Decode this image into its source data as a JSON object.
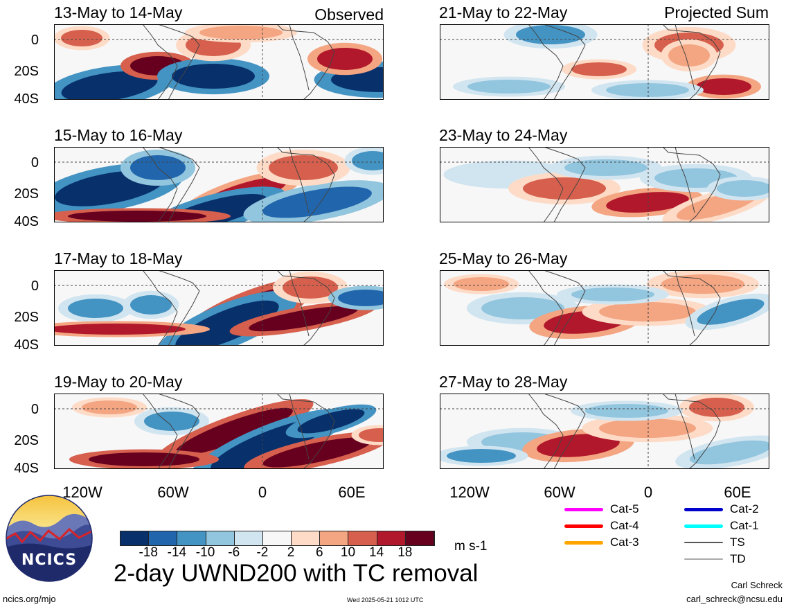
{
  "left_column": {
    "tag": "Observed",
    "panels": [
      {
        "title": "13-May to 14-May"
      },
      {
        "title": "15-May to 16-May"
      },
      {
        "title": "17-May to 18-May"
      },
      {
        "title": "19-May to 20-May"
      }
    ]
  },
  "right_column": {
    "tag": "Projected Sum",
    "panels": [
      {
        "title": "21-May to 22-May"
      },
      {
        "title": "23-May to 24-May"
      },
      {
        "title": "25-May to 26-May"
      },
      {
        "title": "27-May to 28-May"
      }
    ]
  },
  "lat_labels": [
    "0",
    "20S",
    "40S"
  ],
  "lon_labels": [
    "120W",
    "60W",
    "0",
    "60E"
  ],
  "colorbar": {
    "colors": [
      "#08306b",
      "#2166ac",
      "#4393c3",
      "#92c5de",
      "#d1e5f0",
      "#f7f7f7",
      "#fddbc7",
      "#f4a582",
      "#d6604d",
      "#b2182b",
      "#67001f"
    ],
    "labels": [
      "-18",
      "-14",
      "-10",
      "-6",
      "-2",
      "2",
      "6",
      "10",
      "14",
      "18"
    ],
    "units": "m s-1"
  },
  "legend": [
    {
      "label": "Cat-5",
      "color": "#ff00ff"
    },
    {
      "label": "Cat-4",
      "color": "#ff0000"
    },
    {
      "label": "Cat-3",
      "color": "#ffa500"
    },
    {
      "label": "Cat-2",
      "color": "#0000cc"
    },
    {
      "label": "Cat-1",
      "color": "#00ffff"
    },
    {
      "label": "TS",
      "color": "#555555"
    },
    {
      "label": "TD",
      "color": "#aaaaaa"
    }
  ],
  "main_title": "2-day UWND200 with TC removal",
  "logo_text": "NCICS",
  "footer": {
    "site": "ncics.org/mjo",
    "timestamp": "Wed 2025-05-21 1012 UTC",
    "author": "Carl Schreck",
    "email": "carl_schreck@ncsu.edu"
  }
}
